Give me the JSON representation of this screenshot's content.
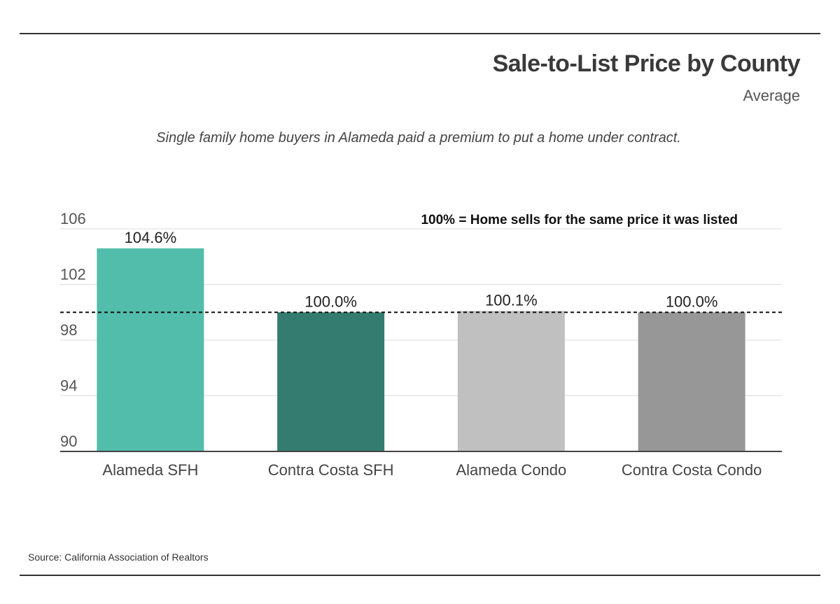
{
  "header": {
    "title": "Sale-to-List Price by County",
    "subtitle": "Average",
    "caption": "Single family home buyers in Alameda paid a premium to put a home under contract."
  },
  "footer": {
    "source": "Source:  California Association of Realtors"
  },
  "chart_data": {
    "type": "bar",
    "categories": [
      "Alameda SFH",
      "Contra Costa SFH",
      "Alameda Condo",
      "Contra Costa Condo"
    ],
    "values": [
      104.6,
      100.0,
      100.1,
      100.0
    ],
    "value_labels": [
      "104.6%",
      "100.0%",
      "100.1%",
      "100.0%"
    ],
    "bar_colors": [
      "#52bdaa",
      "#347c70",
      "#c0c0c0",
      "#979797"
    ],
    "ylim": [
      90,
      106
    ],
    "yticks": [
      90,
      94,
      98,
      102,
      106
    ],
    "grid": true,
    "reference_line": {
      "value": 100,
      "style": "dashed",
      "annotation": "100% = Home sells for the same price it was listed"
    }
  }
}
